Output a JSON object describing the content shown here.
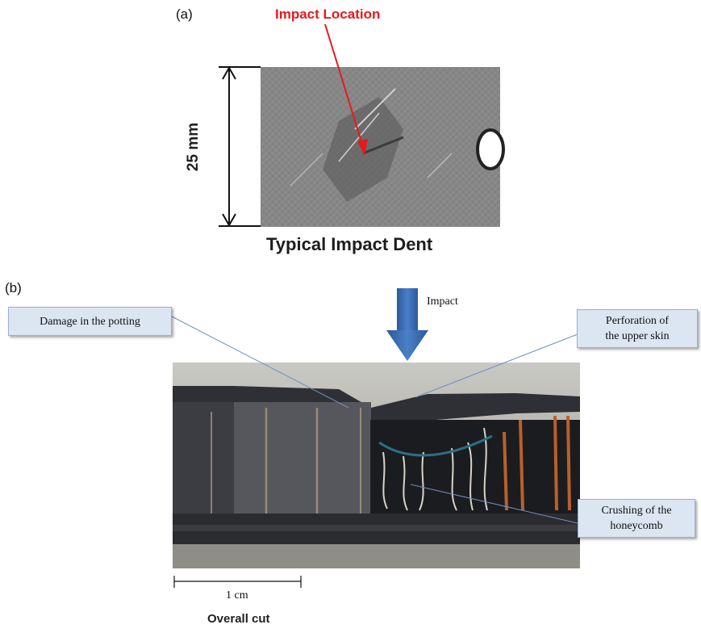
{
  "panel_a": {
    "label": "(a)",
    "impact_location": "Impact Location",
    "dimension": "25 mm",
    "caption": "Typical Impact Dent"
  },
  "panel_b": {
    "label": "(b)",
    "impact_arrow_label": "Impact",
    "callouts": [
      {
        "line1": "Damage in the potting",
        "line2": ""
      },
      {
        "line1": "Perforation of",
        "line2": "the upper skin"
      },
      {
        "line1": "Crushing of the",
        "line2": "honeycomb"
      }
    ],
    "scale_bar": "1 cm",
    "caption": "Overall cut"
  },
  "colors": {
    "impact_location": "#e8191a",
    "arrow_blue": "#3a6db5",
    "callout_fill": "#dce6f2",
    "leader_line": "#6f8fc0"
  }
}
